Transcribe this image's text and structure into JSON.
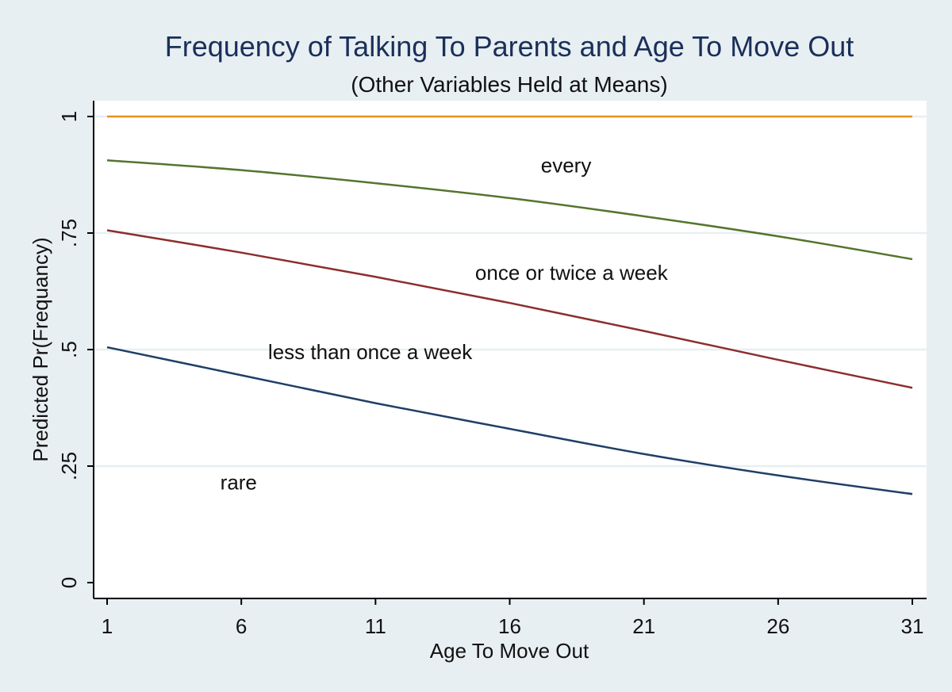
{
  "chart_data": {
    "type": "line",
    "title": "Frequency of Talking To Parents and Age To Move Out",
    "subtitle": "(Other Variables Held at Means)",
    "xlabel": "Age To Move Out",
    "ylabel": "Predicted Pr(Frequancy)",
    "xlim": [
      1,
      31
    ],
    "ylim": [
      0,
      1
    ],
    "x_ticks": [
      1,
      6,
      11,
      16,
      21,
      26,
      31
    ],
    "x_tick_labels": [
      "1",
      "6",
      "11",
      "16",
      "21",
      "26",
      "31"
    ],
    "y_ticks": [
      0,
      0.25,
      0.5,
      0.75,
      1
    ],
    "y_tick_labels": [
      "0",
      ".25",
      ".5",
      ".75",
      "1"
    ],
    "grid": "horizontal",
    "legend": "none",
    "x": [
      1,
      6,
      11,
      16,
      21,
      26,
      31
    ],
    "series": [
      {
        "color": "#1f3f66",
        "values": [
          0.505,
          0.445,
          0.385,
          0.33,
          0.276,
          0.23,
          0.19
        ]
      },
      {
        "color": "#8c2e2e",
        "values": [
          0.756,
          0.708,
          0.656,
          0.6,
          0.54,
          0.478,
          0.418
        ]
      },
      {
        "color": "#55752f",
        "values": [
          0.906,
          0.885,
          0.857,
          0.825,
          0.786,
          0.743,
          0.694
        ]
      },
      {
        "color": "#e6921e",
        "values": [
          1.0,
          1.0,
          1.0,
          1.0,
          1.0,
          1.0,
          1.0
        ]
      }
    ],
    "annotations": [
      {
        "text": "every",
        "x": 18.1,
        "y": 0.895
      },
      {
        "text": "once or twice a week",
        "x": 18.3,
        "y": 0.665
      },
      {
        "text": "less than once a week",
        "x": 10.8,
        "y": 0.495
      },
      {
        "text": "rare",
        "x": 5.9,
        "y": 0.215
      }
    ],
    "colors": {
      "background": "#e8eff2",
      "plot_background": "#ffffff",
      "gridline": "#e8eff2",
      "axis": "#000000"
    }
  }
}
